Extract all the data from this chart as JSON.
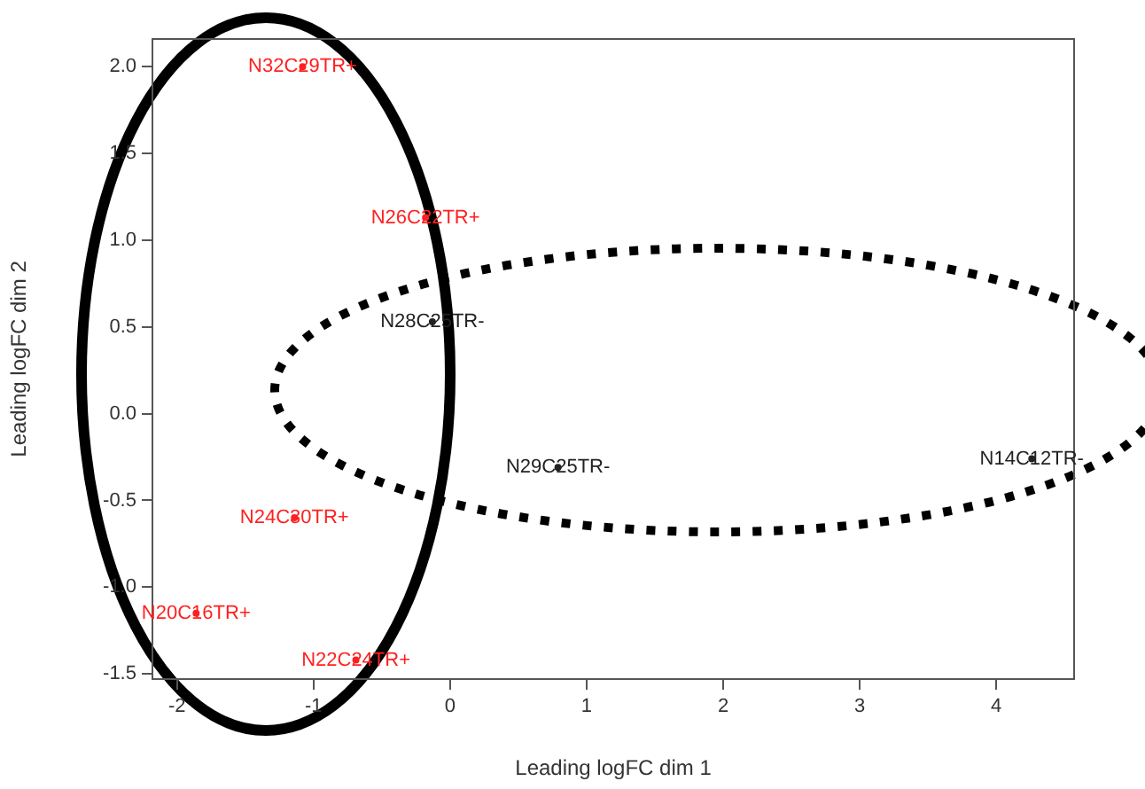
{
  "chart_data": {
    "type": "scatter",
    "xlabel": "Leading logFC dim 1",
    "ylabel": "Leading logFC dim 2",
    "xlim": [
      -2.18,
      4.57
    ],
    "xticks": [
      -2,
      -1,
      0,
      1,
      2,
      3,
      4
    ],
    "ylim": [
      -1.53,
      2.16
    ],
    "yticks": [
      -1.5,
      {
        "value": -1,
        "label": "-1.0"
      },
      -0.5,
      {
        "value": 0,
        "label": "0.0"
      },
      0.5,
      {
        "value": 1,
        "label": "1.0"
      },
      1.5,
      {
        "value": 2,
        "label": "2.0"
      }
    ],
    "grid": false,
    "legend": false,
    "marker": "circle",
    "series": [
      {
        "color": "#ff2020",
        "x": [
          -1.08,
          -0.18,
          -1.14,
          -1.86,
          -0.69
        ],
        "values": [
          2.0,
          1.13,
          -0.6,
          -1.15,
          -1.42
        ],
        "value_labels": [
          "N32C29TR+",
          "N26C22TR+",
          "N24C30TR+",
          "N20C16TR+",
          "N22C24TR+"
        ]
      },
      {
        "color": "#222222",
        "x": [
          -0.13,
          0.79,
          4.26
        ],
        "values": [
          0.53,
          -0.31,
          -0.26
        ],
        "value_labels": [
          "N28C25TR-",
          "N29C25TR-",
          "N14C12TR-"
        ]
      }
    ]
  }
}
